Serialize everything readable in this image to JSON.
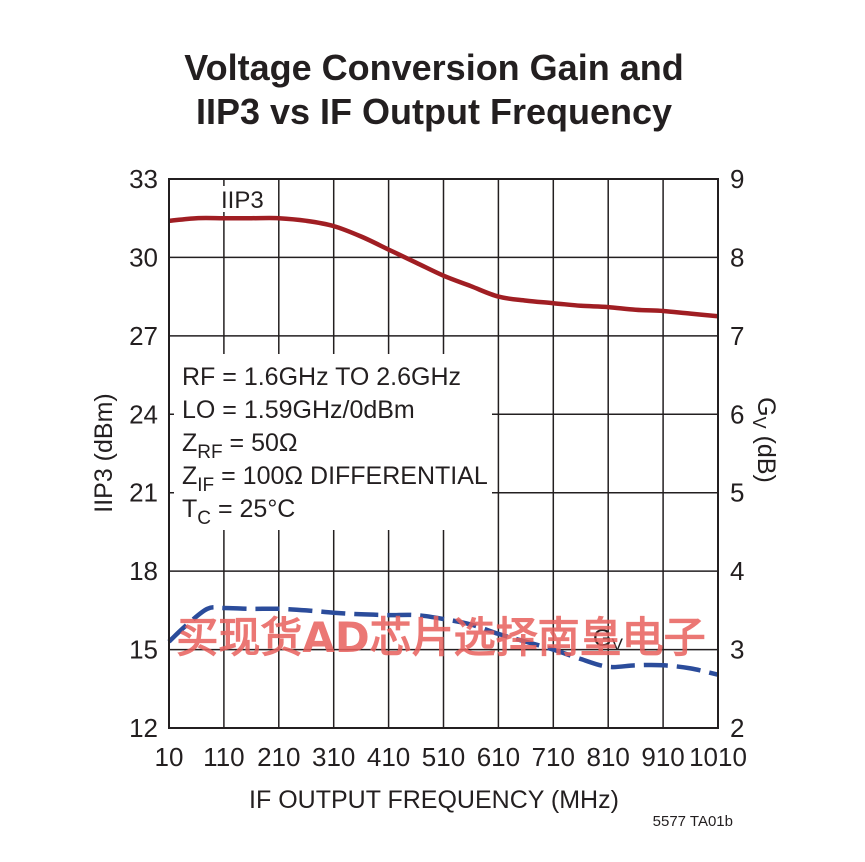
{
  "chart_data": {
    "type": "line",
    "title_lines": [
      "Voltage Conversion Gain and",
      "IIP3 vs IF Output Frequency"
    ],
    "xlabel": "IF OUTPUT FREQUENCY (MHz)",
    "ylabel_left": "IIP3 (dBm)",
    "ylabel_right": "Gv (dB)",
    "xlim": [
      10,
      1010
    ],
    "ylim_left": [
      12,
      33
    ],
    "ylim_right": [
      2,
      9
    ],
    "x_ticks": [
      "10",
      "110",
      "210",
      "310",
      "410",
      "510",
      "610",
      "710",
      "810",
      "910",
      "1010"
    ],
    "y_ticks_left": [
      "12",
      "15",
      "18",
      "21",
      "24",
      "27",
      "30",
      "33"
    ],
    "y_ticks_right": [
      "2",
      "3",
      "4",
      "5",
      "6",
      "7",
      "8",
      "9"
    ],
    "grid": true,
    "conditions": [
      {
        "main": "RF = 1.6GHz TO 2.6GHz"
      },
      {
        "main": "LO = 1.59GHz/0dBm"
      },
      {
        "main": "Z",
        "sub": "RF",
        "rest": " = 50Ω"
      },
      {
        "main": "Z",
        "sub": "IF",
        "rest": " = 100Ω DIFFERENTIAL"
      },
      {
        "main": "T",
        "sub": "C",
        "rest": " = 25°C"
      }
    ],
    "series": [
      {
        "name": "IIP3",
        "axis": "left",
        "color": "#a01e23",
        "style": "solid",
        "x": [
          10,
          60,
          110,
          160,
          210,
          260,
          310,
          360,
          410,
          460,
          510,
          560,
          610,
          660,
          710,
          760,
          810,
          860,
          910,
          960,
          1010
        ],
        "y": [
          31.4,
          31.5,
          31.5,
          31.5,
          31.5,
          31.4,
          31.2,
          30.8,
          30.3,
          29.8,
          29.3,
          28.9,
          28.5,
          28.35,
          28.25,
          28.15,
          28.1,
          28.0,
          27.95,
          27.85,
          27.75
        ]
      },
      {
        "name": "Gv",
        "axis": "right",
        "color": "#2b4c9b",
        "style": "dashed",
        "x": [
          10,
          40,
          80,
          110,
          160,
          210,
          260,
          310,
          360,
          410,
          460,
          510,
          560,
          610,
          660,
          710,
          760,
          810,
          860,
          910,
          960,
          1010
        ],
        "y": [
          3.1,
          3.3,
          3.52,
          3.53,
          3.52,
          3.52,
          3.5,
          3.47,
          3.45,
          3.44,
          3.44,
          3.39,
          3.32,
          3.2,
          3.1,
          3.0,
          2.88,
          2.78,
          2.8,
          2.8,
          2.76,
          2.68
        ]
      }
    ]
  },
  "figure_id": "5577 TA01b",
  "watermark": "买现货AD芯片选择南皇电子"
}
